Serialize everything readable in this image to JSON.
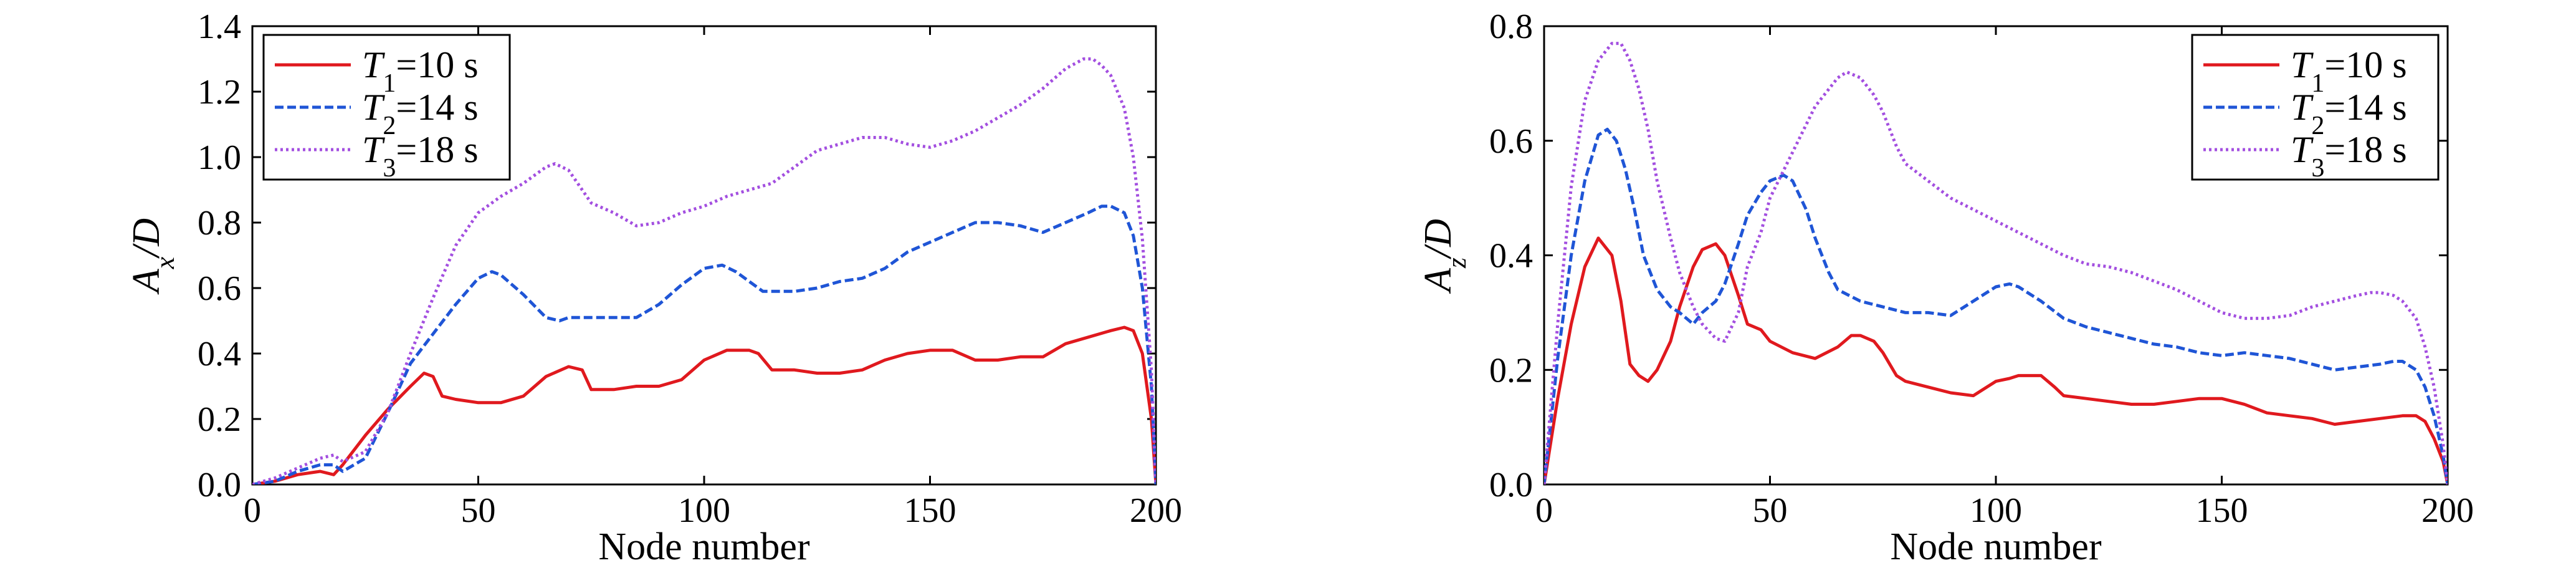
{
  "chart_data": [
    {
      "type": "line",
      "xlabel": "Node number",
      "ylabel": {
        "main": "A",
        "sub": "x",
        "rest": "/D"
      },
      "xlim": [
        0,
        200
      ],
      "ylim": [
        0,
        1.4
      ],
      "xticks": [
        0,
        50,
        100,
        150,
        200
      ],
      "xtick_labels": [
        "0",
        "50",
        "100",
        "150",
        "200"
      ],
      "yticks": [
        0,
        0.2,
        0.4,
        0.6,
        0.8,
        1.0,
        1.2,
        1.4
      ],
      "ytick_labels": [
        "0.0",
        "0.2",
        "0.4",
        "0.6",
        "0.8",
        "1.0",
        "1.2",
        "1.4"
      ],
      "legend_position": "top-left",
      "grid": false,
      "series": [
        {
          "name": {
            "main": "T",
            "sub": "1",
            "rest": "=10 s"
          },
          "color": "#e0191e",
          "line_style": "solid",
          "x": [
            0,
            5,
            10,
            15,
            18,
            20,
            25,
            30,
            35,
            38,
            40,
            42,
            45,
            50,
            55,
            60,
            65,
            70,
            73,
            75,
            80,
            85,
            90,
            95,
            100,
            105,
            110,
            112,
            115,
            120,
            125,
            130,
            135,
            140,
            145,
            150,
            155,
            160,
            165,
            170,
            175,
            180,
            185,
            190,
            193,
            195,
            197,
            199,
            200
          ],
          "y": [
            0,
            0.01,
            0.03,
            0.04,
            0.03,
            0.06,
            0.15,
            0.23,
            0.3,
            0.34,
            0.33,
            0.27,
            0.26,
            0.25,
            0.25,
            0.27,
            0.33,
            0.36,
            0.35,
            0.29,
            0.29,
            0.3,
            0.3,
            0.32,
            0.38,
            0.41,
            0.41,
            0.4,
            0.35,
            0.35,
            0.34,
            0.34,
            0.35,
            0.38,
            0.4,
            0.41,
            0.41,
            0.38,
            0.38,
            0.39,
            0.39,
            0.43,
            0.45,
            0.47,
            0.48,
            0.47,
            0.4,
            0.2,
            0
          ]
        },
        {
          "name": {
            "main": "T",
            "sub": "2",
            "rest": "=14 s"
          },
          "color": "#1f55d6",
          "line_style": "dashed",
          "x": [
            0,
            5,
            10,
            15,
            18,
            20,
            25,
            30,
            35,
            40,
            45,
            50,
            53,
            55,
            60,
            65,
            68,
            70,
            75,
            80,
            85,
            90,
            95,
            100,
            104,
            107,
            110,
            113,
            115,
            120,
            125,
            130,
            135,
            140,
            145,
            150,
            155,
            160,
            165,
            170,
            175,
            180,
            185,
            188,
            190,
            193,
            195,
            197,
            199,
            200
          ],
          "y": [
            0,
            0.01,
            0.04,
            0.06,
            0.06,
            0.04,
            0.08,
            0.22,
            0.37,
            0.46,
            0.55,
            0.63,
            0.65,
            0.64,
            0.58,
            0.51,
            0.5,
            0.51,
            0.51,
            0.51,
            0.51,
            0.55,
            0.61,
            0.66,
            0.67,
            0.65,
            0.62,
            0.59,
            0.59,
            0.59,
            0.6,
            0.62,
            0.63,
            0.66,
            0.71,
            0.74,
            0.77,
            0.8,
            0.8,
            0.79,
            0.77,
            0.8,
            0.83,
            0.85,
            0.85,
            0.83,
            0.76,
            0.6,
            0.3,
            0
          ]
        },
        {
          "name": {
            "main": "T",
            "sub": "3",
            "rest": "=18 s"
          },
          "color": "#a34fe0",
          "line_style": "dotted",
          "x": [
            0,
            5,
            10,
            15,
            18,
            20,
            25,
            30,
            35,
            40,
            45,
            50,
            55,
            60,
            65,
            67,
            70,
            75,
            80,
            85,
            90,
            95,
            100,
            105,
            110,
            115,
            120,
            125,
            130,
            135,
            140,
            145,
            150,
            155,
            160,
            165,
            170,
            175,
            180,
            184,
            186,
            188,
            190,
            193,
            195,
            197,
            199,
            200
          ],
          "y": [
            0,
            0.02,
            0.05,
            0.08,
            0.09,
            0.07,
            0.1,
            0.22,
            0.4,
            0.57,
            0.73,
            0.83,
            0.88,
            0.92,
            0.97,
            0.98,
            0.96,
            0.86,
            0.83,
            0.79,
            0.8,
            0.83,
            0.85,
            0.88,
            0.9,
            0.92,
            0.97,
            1.02,
            1.04,
            1.06,
            1.06,
            1.04,
            1.03,
            1.05,
            1.08,
            1.12,
            1.16,
            1.21,
            1.27,
            1.3,
            1.3,
            1.28,
            1.25,
            1.15,
            1.0,
            0.75,
            0.35,
            0
          ]
        }
      ]
    },
    {
      "type": "line",
      "xlabel": "Node number",
      "ylabel": {
        "main": "A",
        "sub": "z",
        "rest": "/D"
      },
      "xlim": [
        0,
        200
      ],
      "ylim": [
        0,
        0.8
      ],
      "xticks": [
        0,
        50,
        100,
        150,
        200
      ],
      "xtick_labels": [
        "0",
        "50",
        "100",
        "150",
        "200"
      ],
      "yticks": [
        0,
        0.2,
        0.4,
        0.6,
        0.8
      ],
      "ytick_labels": [
        "0.0",
        "0.2",
        "0.4",
        "0.6",
        "0.8"
      ],
      "legend_position": "top-right",
      "grid": false,
      "series": [
        {
          "name": {
            "main": "T",
            "sub": "1",
            "rest": "=10 s"
          },
          "color": "#e0191e",
          "line_style": "solid",
          "x": [
            0,
            3,
            6,
            9,
            12,
            15,
            17,
            19,
            21,
            23,
            25,
            28,
            30,
            33,
            35,
            38,
            40,
            43,
            45,
            48,
            50,
            55,
            60,
            65,
            68,
            70,
            73,
            75,
            78,
            80,
            85,
            90,
            95,
            100,
            103,
            105,
            110,
            113,
            115,
            120,
            125,
            130,
            135,
            140,
            145,
            150,
            155,
            160,
            165,
            170,
            175,
            180,
            185,
            190,
            193,
            195,
            197,
            199,
            200
          ],
          "y": [
            0,
            0.15,
            0.28,
            0.38,
            0.43,
            0.4,
            0.32,
            0.21,
            0.19,
            0.18,
            0.2,
            0.25,
            0.31,
            0.38,
            0.41,
            0.42,
            0.4,
            0.33,
            0.28,
            0.27,
            0.25,
            0.23,
            0.22,
            0.24,
            0.26,
            0.26,
            0.25,
            0.23,
            0.19,
            0.18,
            0.17,
            0.16,
            0.155,
            0.18,
            0.185,
            0.19,
            0.19,
            0.17,
            0.155,
            0.15,
            0.145,
            0.14,
            0.14,
            0.145,
            0.15,
            0.15,
            0.14,
            0.125,
            0.12,
            0.115,
            0.105,
            0.11,
            0.115,
            0.12,
            0.12,
            0.11,
            0.08,
            0.04,
            0
          ]
        },
        {
          "name": {
            "main": "T",
            "sub": "2",
            "rest": "=14 s"
          },
          "color": "#1f55d6",
          "line_style": "dashed",
          "x": [
            0,
            3,
            6,
            9,
            12,
            14,
            16,
            18,
            20,
            22,
            25,
            28,
            30,
            33,
            35,
            38,
            40,
            43,
            45,
            48,
            50,
            53,
            55,
            58,
            60,
            63,
            65,
            70,
            75,
            80,
            85,
            90,
            95,
            100,
            103,
            105,
            110,
            115,
            120,
            125,
            130,
            135,
            140,
            145,
            150,
            155,
            160,
            165,
            170,
            175,
            180,
            185,
            188,
            190,
            193,
            195,
            197,
            199,
            200
          ],
          "y": [
            0,
            0.22,
            0.4,
            0.53,
            0.61,
            0.62,
            0.6,
            0.55,
            0.48,
            0.4,
            0.34,
            0.31,
            0.3,
            0.28,
            0.3,
            0.32,
            0.35,
            0.42,
            0.47,
            0.51,
            0.53,
            0.54,
            0.53,
            0.48,
            0.43,
            0.37,
            0.34,
            0.32,
            0.31,
            0.3,
            0.3,
            0.295,
            0.32,
            0.345,
            0.35,
            0.345,
            0.32,
            0.29,
            0.275,
            0.265,
            0.255,
            0.245,
            0.24,
            0.23,
            0.225,
            0.23,
            0.225,
            0.22,
            0.21,
            0.2,
            0.205,
            0.21,
            0.215,
            0.215,
            0.2,
            0.17,
            0.12,
            0.05,
            0
          ]
        },
        {
          "name": {
            "main": "T",
            "sub": "3",
            "rest": "=18 s"
          },
          "color": "#a34fe0",
          "line_style": "dotted",
          "x": [
            0,
            3,
            6,
            9,
            12,
            15,
            17,
            19,
            21,
            23,
            25,
            28,
            30,
            33,
            35,
            38,
            40,
            43,
            45,
            48,
            50,
            55,
            60,
            65,
            67,
            70,
            73,
            75,
            78,
            80,
            85,
            90,
            95,
            100,
            105,
            110,
            115,
            120,
            125,
            130,
            135,
            140,
            145,
            150,
            155,
            160,
            165,
            170,
            175,
            180,
            183,
            185,
            188,
            190,
            193,
            195,
            197,
            199,
            200
          ],
          "y": [
            0,
            0.28,
            0.52,
            0.67,
            0.74,
            0.77,
            0.77,
            0.74,
            0.69,
            0.62,
            0.53,
            0.43,
            0.37,
            0.31,
            0.28,
            0.255,
            0.25,
            0.3,
            0.38,
            0.44,
            0.5,
            0.58,
            0.66,
            0.71,
            0.72,
            0.71,
            0.68,
            0.65,
            0.59,
            0.56,
            0.53,
            0.5,
            0.48,
            0.46,
            0.44,
            0.42,
            0.4,
            0.385,
            0.38,
            0.37,
            0.355,
            0.34,
            0.32,
            0.3,
            0.29,
            0.29,
            0.295,
            0.31,
            0.32,
            0.33,
            0.335,
            0.335,
            0.33,
            0.32,
            0.29,
            0.24,
            0.17,
            0.07,
            0
          ]
        }
      ]
    }
  ]
}
